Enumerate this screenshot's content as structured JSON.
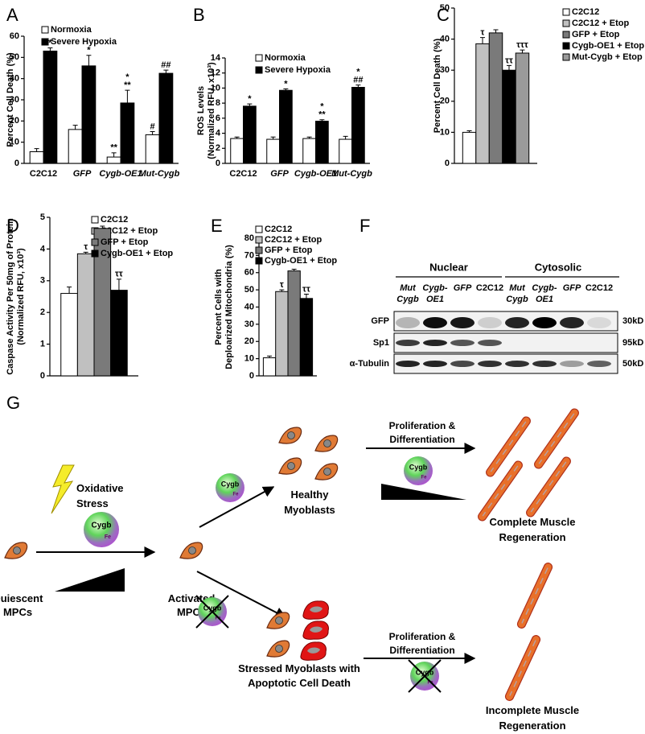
{
  "chart_data": [
    {
      "type": "bar",
      "panel": "A",
      "ylabel": [
        "Percent Cell Death (%)"
      ],
      "categories": [
        "C2C12",
        "GFP",
        "Cygb-OE1",
        "Mut-Cygb"
      ],
      "category_italic": [
        false,
        true,
        true,
        true
      ],
      "ylim": [
        0,
        60
      ],
      "yticks": [
        0,
        10,
        20,
        30,
        40,
        50,
        60
      ],
      "series": [
        {
          "name": "Normoxia",
          "color": "#ffffff",
          "values": [
            5.5,
            16,
            3,
            13.5
          ],
          "errors": [
            1.5,
            2,
            2,
            1.5
          ],
          "annotations": [
            [],
            [],
            [
              "**"
            ],
            [
              "#"
            ]
          ]
        },
        {
          "name": "Severe Hypoxia",
          "color": "#000000",
          "values": [
            53,
            46,
            28.5,
            42.5
          ],
          "errors": [
            1.5,
            5,
            6,
            1.5
          ],
          "annotations": [
            [
              "*"
            ],
            [
              "*"
            ],
            [
              "*",
              "**"
            ],
            [
              "##"
            ]
          ]
        }
      ]
    },
    {
      "type": "bar",
      "panel": "B",
      "ylabel": [
        "ROS Levels",
        "(Normalized RFU, x10³)"
      ],
      "categories": [
        "C2C12",
        "GFP",
        "Cygb-OE1",
        "Mut-Cygb"
      ],
      "category_italic": [
        false,
        true,
        true,
        true
      ],
      "ylim": [
        0,
        14
      ],
      "yticks": [
        0,
        2,
        4,
        6,
        8,
        10,
        12,
        14
      ],
      "series": [
        {
          "name": "Normoxia",
          "color": "#ffffff",
          "values": [
            3.3,
            3.2,
            3.3,
            3.2
          ],
          "errors": [
            0.2,
            0.3,
            0.2,
            0.4
          ],
          "annotations": [
            [],
            [],
            [],
            []
          ]
        },
        {
          "name": "Severe Hypoxia",
          "color": "#000000",
          "values": [
            7.6,
            9.7,
            5.6,
            10.1
          ],
          "errors": [
            0.3,
            0.2,
            0.2,
            0.3
          ],
          "annotations": [
            [
              "*"
            ],
            [
              "*"
            ],
            [
              "*",
              "**"
            ],
            [
              "*",
              "##"
            ]
          ]
        }
      ]
    },
    {
      "type": "bar",
      "panel": "C",
      "ylabel": [
        "Percent Cell Death (%)"
      ],
      "ylim": [
        0,
        50
      ],
      "yticks": [
        0,
        10,
        20,
        30,
        40,
        50
      ],
      "series": [
        {
          "name": "C2C12",
          "color": "#ffffff",
          "values": [
            10
          ],
          "errors": [
            0.5
          ],
          "annotations": [
            []
          ]
        },
        {
          "name": "C2C12 + Etop",
          "color": "#c0c0c0",
          "values": [
            38.5
          ],
          "errors": [
            2
          ],
          "annotations": [
            [
              "τ"
            ]
          ]
        },
        {
          "name": "GFP + Etop",
          "color": "#7a7a7a",
          "values": [
            42
          ],
          "errors": [
            1
          ],
          "annotations": [
            []
          ]
        },
        {
          "name": "Cygb-OE1 + Etop",
          "color": "#000000",
          "values": [
            30
          ],
          "errors": [
            1.5
          ],
          "annotations": [
            [
              "ττ"
            ]
          ]
        },
        {
          "name": "Mut-Cygb + Etop",
          "color": "#9a9a9a",
          "values": [
            35.5
          ],
          "errors": [
            1
          ],
          "annotations": [
            [
              "τττ"
            ]
          ]
        }
      ]
    },
    {
      "type": "bar",
      "panel": "D",
      "ylabel": [
        "Caspase Activity Per 50mg of Protein",
        "(Normalized RFU, x10³)"
      ],
      "ylim": [
        0,
        5
      ],
      "yticks": [
        0,
        1,
        2,
        3,
        4,
        5
      ],
      "series": [
        {
          "name": "C2C12",
          "color": "#ffffff",
          "values": [
            2.6
          ],
          "errors": [
            0.2
          ],
          "annotations": [
            []
          ]
        },
        {
          "name": "C2C12 + Etop",
          "color": "#c0c0c0",
          "values": [
            3.85
          ],
          "errors": [
            0.05
          ],
          "annotations": [
            [
              "τ"
            ]
          ]
        },
        {
          "name": "GFP + Etop",
          "color": "#7a7a7a",
          "values": [
            4.65
          ],
          "errors": [
            0.07
          ],
          "annotations": [
            []
          ]
        },
        {
          "name": "Cygb-OE1 + Etop",
          "color": "#000000",
          "values": [
            2.7
          ],
          "errors": [
            0.35
          ],
          "annotations": [
            [
              "ττ"
            ]
          ]
        }
      ]
    },
    {
      "type": "bar",
      "panel": "E",
      "ylabel": [
        "Percent Cells with",
        "Deploarized Mitochondria (%)"
      ],
      "ylim": [
        0,
        80
      ],
      "yticks": [
        0,
        10,
        20,
        30,
        40,
        50,
        60,
        70,
        80
      ],
      "series": [
        {
          "name": "C2C12",
          "color": "#ffffff",
          "values": [
            10.5
          ],
          "errors": [
            1
          ],
          "annotations": [
            []
          ]
        },
        {
          "name": "C2C12 + Etop",
          "color": "#c0c0c0",
          "values": [
            49
          ],
          "errors": [
            1
          ],
          "annotations": [
            [
              "τ"
            ]
          ]
        },
        {
          "name": "GFP + Etop",
          "color": "#7a7a7a",
          "values": [
            61
          ],
          "errors": [
            1
          ],
          "annotations": [
            []
          ]
        },
        {
          "name": "Cygb-OE1 + Etop",
          "color": "#000000",
          "values": [
            45
          ],
          "errors": [
            2.5
          ],
          "annotations": [
            [
              "ττ"
            ]
          ]
        }
      ]
    }
  ],
  "blot": {
    "panel": "F",
    "groups": [
      "Nuclear",
      "Cytosolic"
    ],
    "lanes": [
      [
        "Mut",
        "Cygb"
      ],
      [
        "Cygb-",
        "OE1"
      ],
      [
        "GFP"
      ],
      [
        "C2C12"
      ],
      [
        "Mut",
        "Cygb"
      ],
      [
        "Cygb-",
        "OE1"
      ],
      [
        "GFP"
      ],
      [
        "C2C12"
      ]
    ],
    "rows": [
      {
        "name": "GFP",
        "size": "30kD"
      },
      {
        "name": "Sp1",
        "size": "95kD"
      },
      {
        "name": "α-Tubulin",
        "size": "50kD"
      }
    ]
  },
  "diagram": {
    "panel": "G",
    "stress": [
      "Oxidative",
      "Stress"
    ],
    "quiescent": [
      "Quiescent",
      "MPCs"
    ],
    "activated": [
      "Activated",
      "MPCs"
    ],
    "healthy": [
      "Healthy",
      "Myoblasts"
    ],
    "stressed": [
      "Stressed Myoblasts with",
      "Apoptotic Cell Death"
    ],
    "prolif_top": [
      "Proliferation &",
      "Differentiation"
    ],
    "prolif_bottom": [
      "Proliferation &",
      "Differentiation"
    ],
    "complete": [
      "Complete Muscle",
      "Regeneration"
    ],
    "incomplete": [
      "Incomplete Muscle",
      "Regeneration"
    ],
    "protein": "Cygb",
    "iron": "Fe"
  }
}
